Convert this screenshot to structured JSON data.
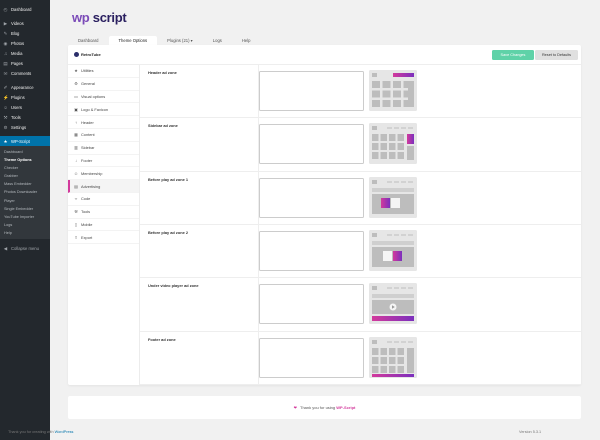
{
  "admin_menu": {
    "top_items": [
      {
        "label": "Dashboard",
        "icon": "dashboard-icon",
        "glyph": "◴"
      }
    ],
    "group2": [
      {
        "label": "Videos",
        "icon": "video-icon",
        "glyph": "▶"
      },
      {
        "label": "Blog",
        "icon": "pin-icon",
        "glyph": "✎"
      },
      {
        "label": "Photos",
        "icon": "camera-icon",
        "glyph": "◉"
      },
      {
        "label": "Media",
        "icon": "media-icon",
        "glyph": "♫"
      },
      {
        "label": "Pages",
        "icon": "page-icon",
        "glyph": "▤"
      },
      {
        "label": "Comments",
        "icon": "comment-icon",
        "glyph": "✉"
      }
    ],
    "group3": [
      {
        "label": "Appearance",
        "icon": "brush-icon",
        "glyph": "✐"
      },
      {
        "label": "Plugins",
        "icon": "plugin-icon",
        "glyph": "⚡"
      },
      {
        "label": "Users",
        "icon": "user-icon",
        "glyph": "☺"
      },
      {
        "label": "Tools",
        "icon": "wrench-icon",
        "glyph": "⚒"
      },
      {
        "label": "Settings",
        "icon": "settings-icon",
        "glyph": "⚙"
      }
    ],
    "current": {
      "label": "WP-Script",
      "icon": "wpscript-icon",
      "glyph": "★"
    },
    "submenu": [
      "Dashboard",
      "Theme Options",
      "Checker",
      "Grabber",
      "Mass Embedder",
      "Photos Downloader",
      "Player",
      "Single Embedder",
      "YouTube Importer",
      "Logs",
      "Help"
    ],
    "submenu_active": "Theme Options",
    "collapse_label": "Collapse menu"
  },
  "logo": {
    "part1": "wp",
    "part2": "script"
  },
  "tabs": [
    {
      "label": "Dashboard",
      "active": false
    },
    {
      "label": "Theme Options",
      "active": true
    },
    {
      "label": "Plugins",
      "count": "21",
      "active": false
    },
    {
      "label": "Logs",
      "active": false
    },
    {
      "label": "Help",
      "active": false
    }
  ],
  "panel": {
    "theme_name": "RetroTube",
    "save_label": "Save Changes",
    "reset_label": "Reset to Defaults"
  },
  "side_nav": [
    {
      "label": "Utilities",
      "icon": "star-icon",
      "glyph": "★"
    },
    {
      "label": "General",
      "icon": "gear-icon",
      "glyph": "⚙"
    },
    {
      "label": "Visual options",
      "icon": "monitor-icon",
      "glyph": "▭"
    },
    {
      "label": "Logo & Favicon",
      "icon": "image-icon",
      "glyph": "▣"
    },
    {
      "label": "Header",
      "icon": "arrow-up-icon",
      "glyph": "↑"
    },
    {
      "label": "Content",
      "icon": "grid-icon",
      "glyph": "▦"
    },
    {
      "label": "Sidebar",
      "icon": "columns-icon",
      "glyph": "▥"
    },
    {
      "label": "Footer",
      "icon": "arrow-down-icon",
      "glyph": "↓"
    },
    {
      "label": "Membership",
      "icon": "person-icon",
      "glyph": "☺"
    },
    {
      "label": "Advertising",
      "icon": "ad-icon",
      "glyph": "▤",
      "active": true
    },
    {
      "label": "Code",
      "icon": "code-icon",
      "glyph": "‹›"
    },
    {
      "label": "Tools",
      "icon": "tools-icon",
      "glyph": "⚒"
    },
    {
      "label": "Mobile",
      "icon": "mobile-icon",
      "glyph": "▯"
    },
    {
      "label": "Export",
      "icon": "export-icon",
      "glyph": "⇪"
    }
  ],
  "zones": [
    {
      "label": "Header ad zone",
      "kind": "header"
    },
    {
      "label": "Sidebar ad zone",
      "kind": "sidebar"
    },
    {
      "label": "Before play ad zone 1",
      "kind": "before1"
    },
    {
      "label": "Before play ad zone 2",
      "kind": "before2"
    },
    {
      "label": "Under video player ad zone",
      "kind": "under"
    },
    {
      "label": "Footer ad zone",
      "kind": "footer"
    }
  ],
  "footer": {
    "thanks_prefix": "Thank you for using",
    "brand": "WP-Script",
    "wp_prefix": "Thank you for creating with",
    "wp_link": "WordPress",
    "version": "Version 5.3.1"
  },
  "colors": {
    "accent": "#d33a9c",
    "accent2": "#7b2fbd",
    "save": "#5fd2a8",
    "admin_bg": "#23282d",
    "admin_current": "#0073aa"
  }
}
